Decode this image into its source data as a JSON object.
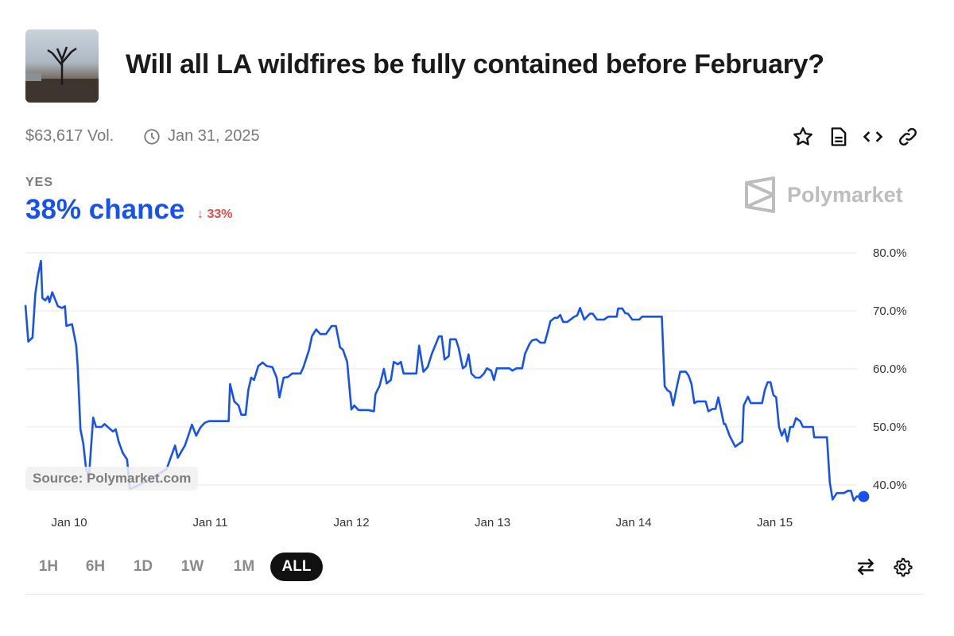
{
  "header": {
    "title": "Will all LA wildfires be fully contained before February?",
    "thumbnail_icon": "market-thumbnail"
  },
  "meta": {
    "volume": "$63,617 Vol.",
    "end_date": "Jan 31, 2025"
  },
  "toolbar_icons": [
    "star-icon",
    "document-icon",
    "embed-code-icon",
    "link-icon"
  ],
  "outcome": {
    "label": "YES",
    "chance": "38% chance",
    "change": "33%",
    "change_direction": "down",
    "accent": "#1652f0",
    "change_color": "#e64a4a"
  },
  "brand": {
    "name": "Polymarket"
  },
  "source": "Source: Polymarket.com",
  "time_ranges": [
    {
      "label": "1H"
    },
    {
      "label": "6H"
    },
    {
      "label": "1D"
    },
    {
      "label": "1W"
    },
    {
      "label": "1M"
    },
    {
      "label": "ALL",
      "active": true
    }
  ],
  "chart_data": {
    "type": "line",
    "title": "",
    "xlabel": "",
    "ylabel": "",
    "xlim": [
      9.69,
      15.63
    ],
    "ylim": [
      40,
      80
    ],
    "x_unit": "day of January 2025",
    "x_ticks": [
      {
        "value": 10,
        "label": "Jan 10"
      },
      {
        "value": 11,
        "label": "Jan 11"
      },
      {
        "value": 12,
        "label": "Jan 12"
      },
      {
        "value": 13,
        "label": "Jan 13"
      },
      {
        "value": 14,
        "label": "Jan 14"
      },
      {
        "value": 15,
        "label": "Jan 15"
      }
    ],
    "y_ticks": [
      {
        "value": 80,
        "label": "80.0%"
      },
      {
        "value": 70,
        "label": "70.0%"
      },
      {
        "value": 60,
        "label": "60.0%"
      },
      {
        "value": 50,
        "label": "50.0%"
      },
      {
        "value": 40,
        "label": "40.0%"
      }
    ],
    "grid": true,
    "series": [
      {
        "name": "YES",
        "color": "#1652f0",
        "x": [
          9.69,
          9.71,
          9.74,
          9.76,
          9.78,
          9.8,
          9.81,
          9.83,
          9.85,
          9.86,
          9.88,
          9.92,
          9.95,
          9.97,
          9.98,
          10.02,
          10.05,
          10.06,
          10.08,
          10.1,
          10.12,
          10.14,
          10.17,
          10.19,
          10.23,
          10.25,
          10.31,
          10.33,
          10.35,
          10.38,
          10.41,
          10.43,
          10.47,
          10.55,
          10.69,
          10.75,
          10.77,
          10.82,
          10.85,
          10.87,
          10.9,
          10.93,
          10.96,
          10.99,
          11.13,
          11.14,
          11.17,
          11.2,
          11.22,
          11.25,
          11.27,
          11.29,
          11.31,
          11.34,
          11.37,
          11.4,
          11.44,
          11.47,
          11.49,
          11.52,
          11.55,
          11.58,
          11.64,
          11.66,
          11.7,
          11.72,
          11.75,
          11.78,
          11.82,
          11.84,
          11.86,
          11.89,
          11.92,
          11.94,
          11.97,
          12.0,
          12.02,
          12.05,
          12.12,
          12.16,
          12.17,
          12.2,
          12.23,
          12.25,
          12.28,
          12.3,
          12.33,
          12.35,
          12.37,
          12.46,
          12.48,
          12.51,
          12.54,
          12.57,
          12.62,
          12.64,
          12.66,
          12.69,
          12.7,
          12.74,
          12.76,
          12.79,
          12.81,
          12.83,
          12.85,
          12.88,
          12.91,
          12.94,
          12.96,
          12.99,
          13.01,
          13.03,
          13.12,
          13.14,
          13.17,
          13.21,
          13.23,
          13.26,
          13.28,
          13.31,
          13.34,
          13.37,
          13.39,
          13.41,
          13.44,
          13.46,
          13.48,
          13.5,
          13.53,
          13.58,
          13.6,
          13.62,
          13.65,
          13.69,
          13.71,
          13.74,
          13.79,
          13.82,
          13.88,
          13.89,
          13.92,
          13.94,
          13.96,
          13.99,
          14.04,
          14.06,
          14.2,
          14.22,
          14.24,
          14.26,
          14.28,
          14.31,
          14.33,
          14.37,
          14.39,
          14.41,
          14.43,
          14.45,
          14.51,
          14.53,
          14.56,
          14.58,
          14.6,
          14.64,
          14.65,
          14.68,
          14.72,
          14.77,
          14.78,
          14.81,
          14.83,
          14.91,
          14.93,
          14.95,
          14.97,
          14.99,
          15.01,
          15.03,
          15.05,
          15.07,
          15.09,
          15.11,
          15.13,
          15.15,
          15.18,
          15.2,
          15.27,
          15.28,
          15.37,
          15.39,
          15.41,
          15.44,
          15.49,
          15.52,
          15.54,
          15.56,
          15.58,
          15.63
        ],
        "y": [
          71.0,
          64.7,
          65.4,
          72.9,
          76.3,
          78.6,
          72.2,
          71.8,
          72.5,
          71.5,
          73.2,
          70.8,
          70.5,
          70.8,
          67.4,
          67.7,
          64.0,
          60.5,
          49.6,
          47.1,
          42.7,
          41.4,
          51.6,
          50.0,
          50.0,
          50.5,
          49.2,
          49.6,
          47.5,
          45.5,
          44.4,
          39.3,
          39.7,
          40.7,
          42.7,
          46.8,
          44.7,
          46.8,
          48.9,
          50.4,
          48.5,
          49.9,
          50.7,
          51.0,
          51.0,
          57.4,
          54.4,
          53.7,
          52.1,
          52.1,
          56.4,
          58.5,
          58.1,
          60.5,
          61.1,
          60.5,
          60.3,
          58.5,
          55.1,
          58.5,
          58.6,
          59.2,
          59.2,
          60.3,
          63.3,
          65.6,
          66.8,
          66.0,
          66.0,
          66.7,
          67.4,
          67.4,
          63.7,
          63.3,
          61.2,
          53.0,
          53.7,
          52.9,
          52.9,
          52.7,
          55.6,
          57.1,
          60.0,
          57.5,
          58.1,
          61.2,
          60.8,
          61.2,
          59.2,
          59.2,
          64.0,
          59.5,
          60.3,
          62.6,
          65.6,
          65.6,
          61.6,
          62.2,
          65.1,
          65.1,
          63.6,
          60.1,
          60.5,
          62.5,
          59.2,
          58.5,
          58.5,
          59.2,
          60.1,
          59.7,
          58.1,
          60.1,
          60.1,
          59.7,
          60.1,
          60.1,
          62.6,
          64.2,
          64.9,
          65.1,
          64.5,
          64.5,
          66.3,
          68.2,
          68.8,
          68.8,
          69.3,
          68.1,
          68.1,
          69.0,
          69.2,
          70.5,
          68.5,
          69.5,
          69.5,
          68.5,
          68.5,
          69.0,
          69.0,
          70.4,
          70.4,
          69.6,
          69.5,
          68.5,
          68.5,
          69.0,
          69.0,
          57.0,
          56.3,
          56.0,
          53.7,
          57.4,
          59.5,
          59.5,
          58.8,
          57.4,
          54.1,
          54.4,
          54.4,
          52.7,
          53.1,
          53.1,
          55.1,
          50.5,
          50.5,
          48.5,
          46.6,
          47.5,
          53.7,
          55.2,
          54.1,
          54.1,
          56.4,
          57.7,
          57.7,
          55.5,
          55.1,
          50.0,
          48.5,
          49.6,
          47.5,
          50.0,
          50.0,
          51.5,
          51.0,
          50.0,
          50.0,
          48.2,
          48.2,
          40.4,
          37.5,
          38.6,
          38.6,
          39.0,
          39.0,
          37.3,
          38.0,
          38.0
        ]
      }
    ]
  }
}
